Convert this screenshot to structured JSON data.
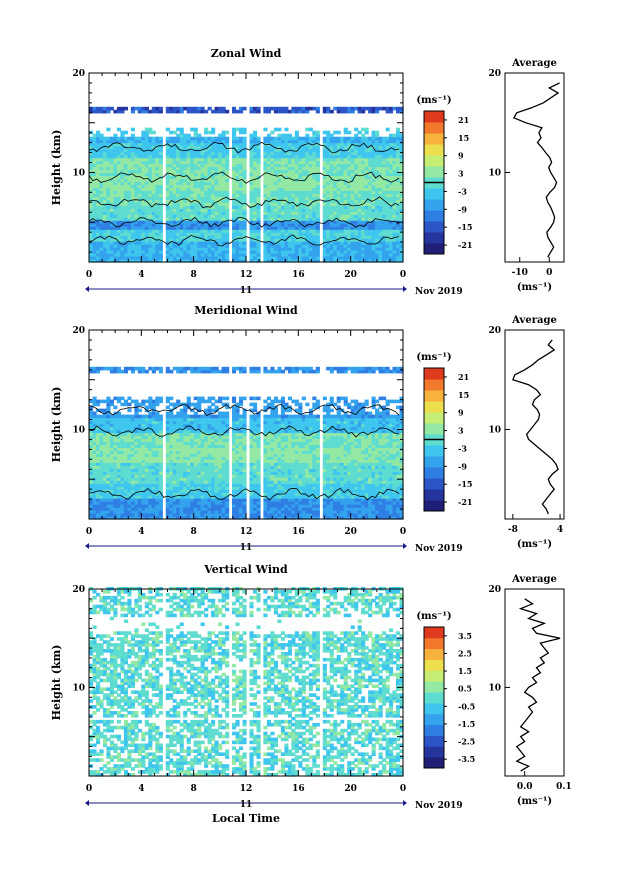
{
  "chart_data": [
    {
      "type": "heatmap",
      "title": "Zonal Wind",
      "xlabel": "",
      "ylabel": "Height (km)",
      "x_ticks": [
        "0",
        "4",
        "8",
        "12",
        "16",
        "20",
        "0"
      ],
      "date_label": "11",
      "date_suffix": "Nov 2019",
      "y_ticks": [
        "20",
        "10"
      ],
      "ylim": [
        1,
        20
      ],
      "xlim": [
        0,
        24
      ],
      "colorbar": {
        "unit_label": "(ms⁻¹)",
        "ticks": [
          "21",
          "15",
          "9",
          "3",
          "-3",
          "-9",
          "-15",
          "-21"
        ],
        "range": [
          -24,
          24
        ],
        "highlight_level": 0
      },
      "data_gaps_hours": [
        [
          5.6,
          6.0
        ],
        [
          10.6,
          11.0
        ],
        [
          12.0,
          12.35
        ],
        [
          13.0,
          13.4
        ],
        [
          17.6,
          17.9
        ]
      ],
      "profile": {
        "title": "Average",
        "x_ticks": [
          "-10",
          "0"
        ],
        "xlabel": "(ms⁻¹)",
        "xlim": [
          -15,
          5
        ],
        "heights": [
          1.5,
          2,
          2.5,
          3,
          3.5,
          4,
          4.5,
          5,
          5.5,
          6,
          6.5,
          7,
          7.5,
          8,
          8.5,
          9,
          9.5,
          10,
          10.5,
          11,
          11.5,
          12,
          12.5,
          13,
          13.5,
          14,
          14.5,
          15,
          15.5,
          16,
          16.5,
          17,
          17.5,
          18,
          18.5,
          19
        ],
        "values": [
          -0.5,
          0.5,
          1.5,
          0.5,
          -0.5,
          -0.8,
          0.5,
          1.5,
          1.8,
          1.2,
          0.5,
          -0.5,
          -1.0,
          0.2,
          1.8,
          2.5,
          1.5,
          0.5,
          -0.2,
          0.8,
          0.2,
          -1.2,
          -2.5,
          -4.0,
          -2.8,
          -3.5,
          -2.5,
          -8.0,
          -12.0,
          -11.0,
          -6.0,
          -2.0,
          0.5,
          3.0,
          0.0,
          3.5
        ]
      }
    },
    {
      "type": "heatmap",
      "title": "Meridional Wind",
      "xlabel": "",
      "ylabel": "Height (km)",
      "x_ticks": [
        "0",
        "4",
        "8",
        "12",
        "16",
        "20",
        "0"
      ],
      "date_label": "11",
      "date_suffix": "Nov 2019",
      "y_ticks": [
        "20",
        "10"
      ],
      "ylim": [
        1,
        20
      ],
      "xlim": [
        0,
        24
      ],
      "colorbar": {
        "unit_label": "(ms⁻¹)",
        "ticks": [
          "21",
          "15",
          "9",
          "3",
          "-3",
          "-9",
          "-15",
          "-21"
        ],
        "range": [
          -24,
          24
        ],
        "highlight_level": 0
      },
      "data_gaps_hours": [
        [
          5.6,
          6.0
        ],
        [
          10.6,
          11.0
        ],
        [
          12.0,
          12.35
        ],
        [
          13.0,
          13.4
        ],
        [
          17.6,
          17.9
        ]
      ],
      "profile": {
        "title": "Average",
        "x_ticks": [
          "-8",
          "4"
        ],
        "xlabel": "(ms⁻¹)",
        "xlim": [
          -10,
          5
        ],
        "heights": [
          1.5,
          2,
          2.5,
          3,
          3.5,
          4,
          4.5,
          5,
          5.5,
          6,
          6.5,
          7,
          7.5,
          8,
          8.5,
          9,
          9.5,
          10,
          10.5,
          11,
          11.5,
          12,
          12.5,
          13,
          13.5,
          14,
          14.5,
          15,
          15.5,
          16,
          16.5,
          17,
          17.5,
          18,
          18.5,
          19
        ],
        "values": [
          1.0,
          0.5,
          -0.5,
          0.5,
          1.5,
          2.5,
          1.5,
          1.0,
          2.0,
          3.5,
          3.0,
          2.0,
          0.5,
          -1.0,
          -2.5,
          -4.0,
          -4.5,
          -3.5,
          -2.5,
          -1.5,
          -1.2,
          -1.8,
          -3.0,
          -2.5,
          -1.0,
          -2.0,
          -4.0,
          -8.0,
          -7.5,
          -5.0,
          -3.0,
          -1.5,
          0.5,
          2.5,
          1.0,
          2.0
        ]
      }
    },
    {
      "type": "heatmap",
      "title": "Vertical Wind",
      "xlabel": "Local Time",
      "ylabel": "Height (km)",
      "x_ticks": [
        "0",
        "4",
        "8",
        "12",
        "16",
        "20",
        "0"
      ],
      "date_label": "11",
      "date_suffix": "Nov 2019",
      "y_ticks": [
        "20",
        "10"
      ],
      "ylim": [
        1,
        20
      ],
      "xlim": [
        0,
        24
      ],
      "colorbar": {
        "unit_label": "(ms⁻¹)",
        "ticks": [
          "3.5",
          "2.5",
          "1.5",
          "0.5",
          "-0.5",
          "-1.5",
          "-2.5",
          "-3.5"
        ],
        "range": [
          -4,
          4
        ]
      },
      "data_gaps_hours": [
        [
          5.6,
          6.0
        ],
        [
          10.6,
          11.0
        ],
        [
          12.0,
          12.35
        ],
        [
          13.0,
          13.4
        ],
        [
          17.6,
          17.9
        ]
      ],
      "profile": {
        "title": "Average",
        "x_ticks": [
          "0.0",
          "0.1"
        ],
        "xlabel": "(ms⁻¹)",
        "xlim": [
          -0.05,
          0.1
        ],
        "heights": [
          1.5,
          2,
          2.5,
          3,
          3.5,
          4,
          4.5,
          5,
          5.5,
          6,
          6.5,
          7,
          7.5,
          8,
          8.5,
          9,
          9.5,
          10,
          10.5,
          11,
          11.5,
          12,
          12.5,
          13,
          13.5,
          14,
          14.5,
          15,
          15.5,
          16,
          16.5,
          17,
          17.5,
          18,
          18.5,
          19
        ],
        "values": [
          -0.01,
          0.01,
          -0.02,
          0.0,
          -0.01,
          -0.02,
          0.0,
          -0.01,
          0.01,
          -0.01,
          0.0,
          0.01,
          0.02,
          0.01,
          0.03,
          0.02,
          0.0,
          0.01,
          0.03,
          0.02,
          0.04,
          0.03,
          0.05,
          0.04,
          0.06,
          0.05,
          0.04,
          0.09,
          0.03,
          0.02,
          0.05,
          0.01,
          0.03,
          -0.01,
          0.02,
          0.0
        ]
      }
    }
  ]
}
